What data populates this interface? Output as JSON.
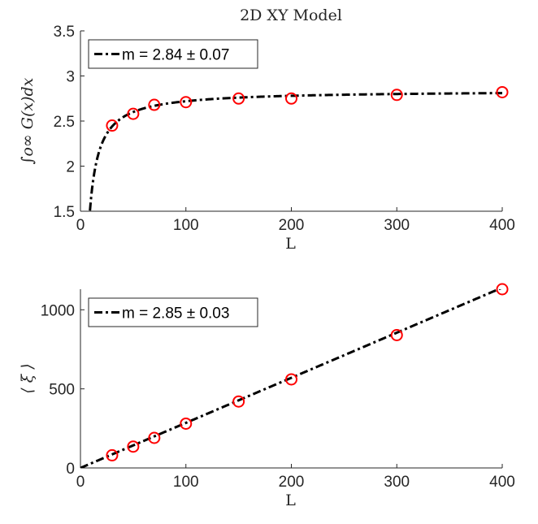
{
  "figure_title": "2D XY Model",
  "chart_data": [
    {
      "type": "scatter",
      "title": "2D XY Model",
      "xlabel": "L",
      "ylabel": "∫o∞ G(x)dx",
      "xlim": [
        0,
        400
      ],
      "ylim": [
        1.5,
        3.5
      ],
      "xticks": [
        0,
        100,
        200,
        300,
        400
      ],
      "yticks": [
        1.5,
        2,
        2.5,
        3,
        3.5
      ],
      "x_tick_labels": [
        "0",
        "100",
        "200",
        "300",
        "400"
      ],
      "y_tick_labels": [
        "1.5",
        "2",
        "2.5",
        "3",
        "3.5"
      ],
      "grid": false,
      "legend_position": "top-left",
      "series": [
        {
          "kind": "markers",
          "marker": "circle",
          "color": "#ff0000",
          "x": [
            30,
            50,
            70,
            100,
            150,
            200,
            300,
            400
          ],
          "y": [
            2.45,
            2.58,
            2.68,
            2.71,
            2.75,
            2.75,
            2.79,
            2.82
          ]
        },
        {
          "kind": "fit-line",
          "name": "m = 2.84 ± 0.07",
          "style": "dash-dot",
          "color": "#000000",
          "model": "saturating",
          "asymptote": 2.84,
          "coefficient": 12.0,
          "x_start": 9
        }
      ]
    },
    {
      "type": "scatter",
      "title": "",
      "xlabel": "L",
      "ylabel": "⟨ ξ ⟩",
      "xlim": [
        0,
        400
      ],
      "ylim": [
        0,
        1130
      ],
      "xticks": [
        0,
        100,
        200,
        300,
        400
      ],
      "yticks": [
        0,
        500,
        1000
      ],
      "x_tick_labels": [
        "0",
        "100",
        "200",
        "300",
        "400"
      ],
      "y_tick_labels": [
        "0",
        "500",
        "1000"
      ],
      "grid": false,
      "legend_position": "top-left",
      "series": [
        {
          "kind": "markers",
          "marker": "circle",
          "color": "#ff0000",
          "x": [
            30,
            50,
            70,
            100,
            150,
            200,
            300,
            400
          ],
          "y": [
            80,
            135,
            190,
            280,
            420,
            560,
            840,
            1130
          ]
        },
        {
          "kind": "fit-line",
          "name": "m = 2.85 ± 0.03",
          "style": "dash-dot",
          "color": "#000000",
          "model": "linear",
          "slope": 2.85,
          "intercept": 0,
          "x_start": 0
        }
      ]
    }
  ]
}
